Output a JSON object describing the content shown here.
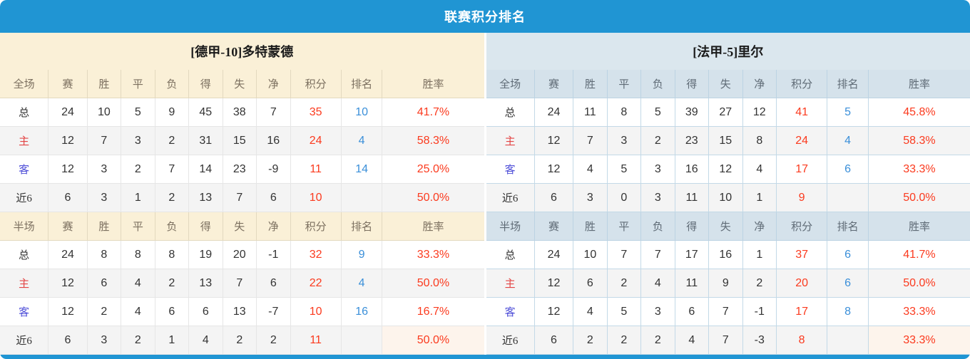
{
  "title": "联赛积分排名",
  "colors": {
    "header_bar": "#2095d3",
    "left_theme_bg": "#faf0d7",
    "right_theme_bg": "#dbe7ee",
    "points_red": "#fb3a1e",
    "rank_blue": "#3a8fd9",
    "home_label_red": "#e34545",
    "away_label_blue": "#4f4fd8",
    "rate_highlight_bg": "#fdf4ec"
  },
  "columns": [
    "赛",
    "胜",
    "平",
    "负",
    "得",
    "失",
    "净",
    "积分",
    "排名",
    "胜率"
  ],
  "teams": [
    {
      "name": "[德甲-10]多特蒙德",
      "sections": [
        {
          "header": "全场",
          "rows": [
            {
              "label": "总",
              "stats": [
                "24",
                "10",
                "5",
                "9",
                "45",
                "38",
                "7"
              ],
              "points": "35",
              "rank": "10",
              "rate": "41.7%",
              "rate_highlight": false
            },
            {
              "label": "主",
              "stats": [
                "12",
                "7",
                "3",
                "2",
                "31",
                "15",
                "16"
              ],
              "points": "24",
              "rank": "4",
              "rate": "58.3%",
              "rate_highlight": false
            },
            {
              "label": "客",
              "stats": [
                "12",
                "3",
                "2",
                "7",
                "14",
                "23",
                "-9"
              ],
              "points": "11",
              "rank": "14",
              "rate": "25.0%",
              "rate_highlight": false
            },
            {
              "label": "近6",
              "stats": [
                "6",
                "3",
                "1",
                "2",
                "13",
                "7",
                "6"
              ],
              "points": "10",
              "rank": "",
              "rate": "50.0%",
              "rate_highlight": false
            }
          ]
        },
        {
          "header": "半场",
          "rows": [
            {
              "label": "总",
              "stats": [
                "24",
                "8",
                "8",
                "8",
                "19",
                "20",
                "-1"
              ],
              "points": "32",
              "rank": "9",
              "rate": "33.3%",
              "rate_highlight": false
            },
            {
              "label": "主",
              "stats": [
                "12",
                "6",
                "4",
                "2",
                "13",
                "7",
                "6"
              ],
              "points": "22",
              "rank": "4",
              "rate": "50.0%",
              "rate_highlight": false
            },
            {
              "label": "客",
              "stats": [
                "12",
                "2",
                "4",
                "6",
                "6",
                "13",
                "-7"
              ],
              "points": "10",
              "rank": "16",
              "rate": "16.7%",
              "rate_highlight": false
            },
            {
              "label": "近6",
              "stats": [
                "6",
                "3",
                "2",
                "1",
                "4",
                "2",
                "2"
              ],
              "points": "11",
              "rank": "",
              "rate": "50.0%",
              "rate_highlight": true
            }
          ]
        }
      ]
    },
    {
      "name": "[法甲-5]里尔",
      "sections": [
        {
          "header": "全场",
          "rows": [
            {
              "label": "总",
              "stats": [
                "24",
                "11",
                "8",
                "5",
                "39",
                "27",
                "12"
              ],
              "points": "41",
              "rank": "5",
              "rate": "45.8%",
              "rate_highlight": false
            },
            {
              "label": "主",
              "stats": [
                "12",
                "7",
                "3",
                "2",
                "23",
                "15",
                "8"
              ],
              "points": "24",
              "rank": "4",
              "rate": "58.3%",
              "rate_highlight": false
            },
            {
              "label": "客",
              "stats": [
                "12",
                "4",
                "5",
                "3",
                "16",
                "12",
                "4"
              ],
              "points": "17",
              "rank": "6",
              "rate": "33.3%",
              "rate_highlight": false
            },
            {
              "label": "近6",
              "stats": [
                "6",
                "3",
                "0",
                "3",
                "11",
                "10",
                "1"
              ],
              "points": "9",
              "rank": "",
              "rate": "50.0%",
              "rate_highlight": false
            }
          ]
        },
        {
          "header": "半场",
          "rows": [
            {
              "label": "总",
              "stats": [
                "24",
                "10",
                "7",
                "7",
                "17",
                "16",
                "1"
              ],
              "points": "37",
              "rank": "6",
              "rate": "41.7%",
              "rate_highlight": false
            },
            {
              "label": "主",
              "stats": [
                "12",
                "6",
                "2",
                "4",
                "11",
                "9",
                "2"
              ],
              "points": "20",
              "rank": "6",
              "rate": "50.0%",
              "rate_highlight": false
            },
            {
              "label": "客",
              "stats": [
                "12",
                "4",
                "5",
                "3",
                "6",
                "7",
                "-1"
              ],
              "points": "17",
              "rank": "8",
              "rate": "33.3%",
              "rate_highlight": false
            },
            {
              "label": "近6",
              "stats": [
                "6",
                "2",
                "2",
                "2",
                "4",
                "7",
                "-3"
              ],
              "points": "8",
              "rank": "",
              "rate": "33.3%",
              "rate_highlight": true
            }
          ]
        }
      ]
    }
  ]
}
